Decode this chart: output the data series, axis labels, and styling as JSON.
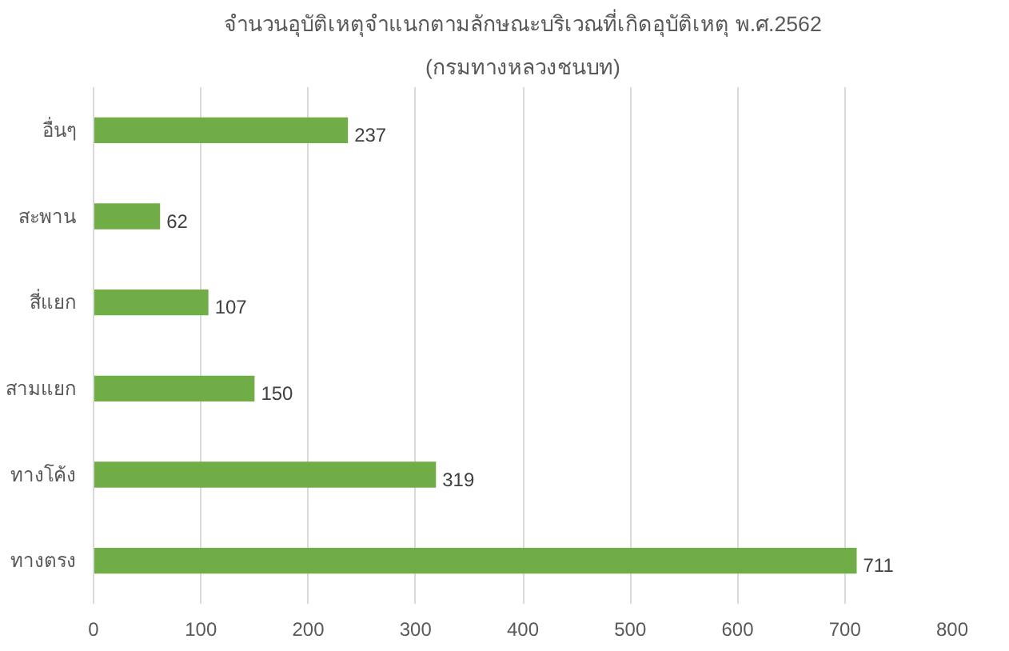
{
  "chart_data": {
    "type": "bar",
    "orientation": "horizontal",
    "title": "จำนวนอุบัติเหตุจำแนกตามลักษณะบริเวณที่เกิดอุบัติเหตุ พ.ศ.2562",
    "subtitle": "(กรมทางหลวงชนบท)",
    "categories": [
      "อื่นๆ",
      "สะพาน",
      "สี่แยก",
      "สามแยก",
      "ทางโค้ง",
      "ทางตรง"
    ],
    "values": [
      237,
      62,
      107,
      150,
      319,
      711
    ],
    "color": "#70ad47",
    "xlim": [
      0,
      800
    ],
    "xticks": [
      0,
      100,
      200,
      300,
      400,
      500,
      600,
      700,
      800
    ],
    "grid": "x",
    "data_labels": true
  }
}
